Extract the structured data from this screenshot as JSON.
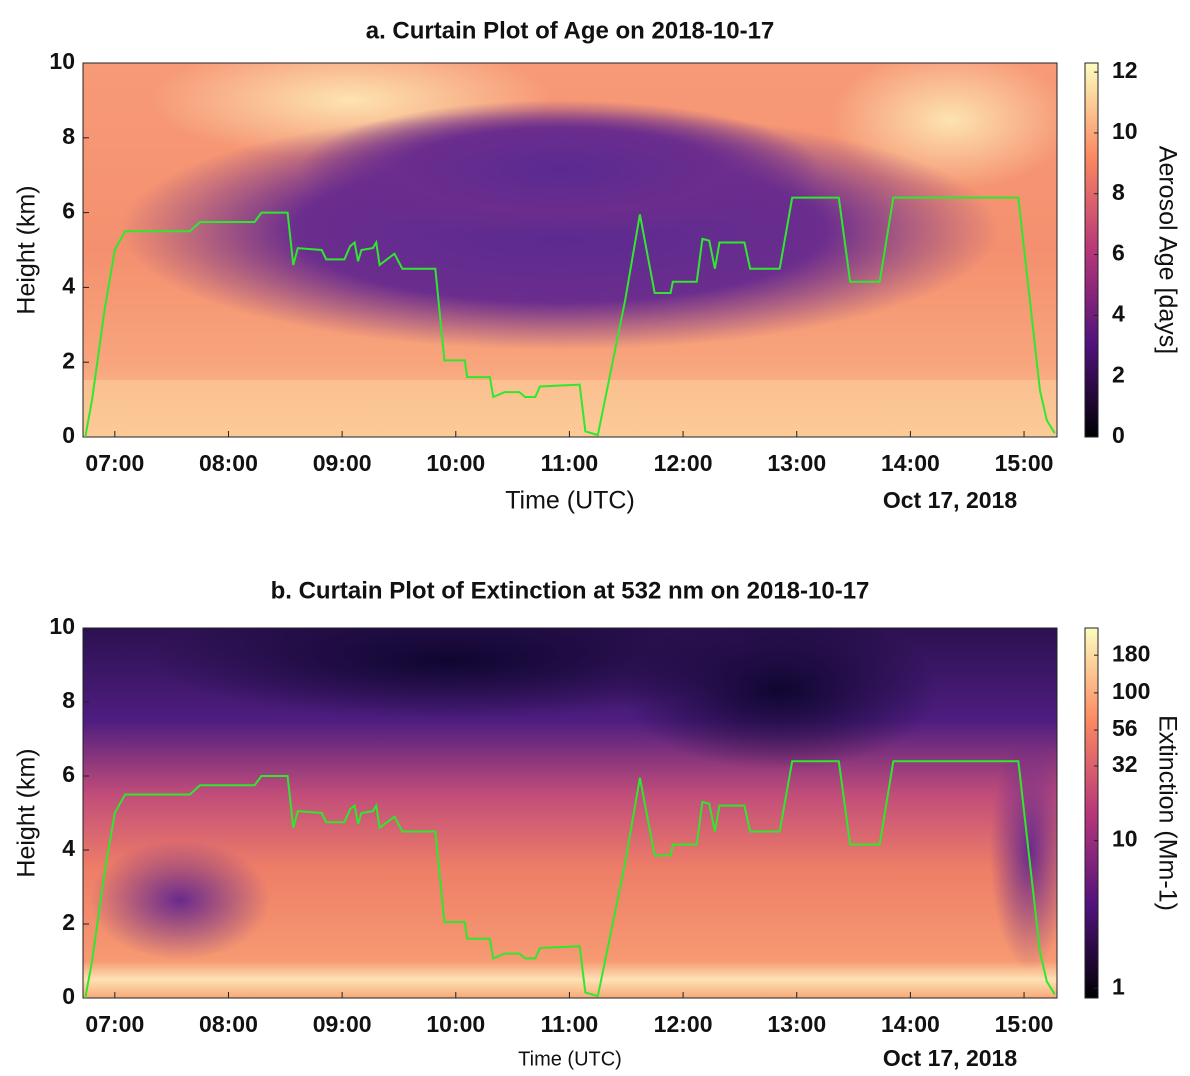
{
  "chart_data": [
    {
      "type": "heatmap",
      "title": "a. Curtain Plot of Age on 2018-10-17",
      "x_label": "Time (UTC)",
      "date_label": "Oct 17, 2018",
      "y_label": "Height (km)",
      "colorbar_label": "Aerosol Age [days]",
      "xlim": [
        6.72,
        15.29
      ],
      "xticks": [
        {
          "value": 7,
          "label": "07:00"
        },
        {
          "value": 8,
          "label": "08:00"
        },
        {
          "value": 9,
          "label": "09:00"
        },
        {
          "value": 10,
          "label": "10:00"
        },
        {
          "value": 11,
          "label": "11:00"
        },
        {
          "value": 12,
          "label": "12:00"
        },
        {
          "value": 13,
          "label": "13:00"
        },
        {
          "value": 14,
          "label": "14:00"
        },
        {
          "value": 15,
          "label": "15:00"
        }
      ],
      "ylim": [
        0,
        10
      ],
      "yticks": [
        0,
        2,
        4,
        6,
        8,
        10
      ],
      "colorbar_scale": "linear",
      "colorbar_lim": [
        0,
        12.3
      ],
      "colorbar_ticks": [
        0,
        2,
        4,
        6,
        8,
        10,
        12
      ],
      "series": [
        {
          "color": "#2ee82e",
          "x": [
            6.74,
            6.8,
            6.91,
            7.0,
            7.09,
            7.66,
            7.75,
            8.23,
            8.29,
            8.52,
            8.57,
            8.61,
            8.82,
            8.86,
            9.02,
            9.07,
            9.11,
            9.14,
            9.17,
            9.27,
            9.3,
            9.33,
            9.46,
            9.53,
            9.82,
            9.9,
            10.08,
            10.1,
            10.3,
            10.33,
            10.43,
            10.56,
            10.61,
            10.7,
            10.74,
            11.09,
            11.14,
            11.25,
            11.49,
            11.62,
            11.75,
            11.89,
            11.91,
            12.12,
            12.17,
            12.23,
            12.28,
            12.32,
            12.54,
            12.59,
            12.85,
            12.96,
            13.37,
            13.47,
            13.73,
            13.85,
            14.95,
            15.14,
            15.2,
            15.27
          ],
          "values": [
            0,
            1.0,
            3.4,
            5.0,
            5.5,
            5.5,
            5.75,
            5.75,
            6.0,
            6.0,
            4.6,
            5.05,
            5.0,
            4.75,
            4.75,
            5.1,
            5.2,
            4.7,
            5.0,
            5.05,
            5.2,
            4.6,
            4.9,
            4.5,
            4.5,
            2.05,
            2.05,
            1.6,
            1.6,
            1.07,
            1.2,
            1.2,
            1.07,
            1.07,
            1.35,
            1.4,
            0.15,
            0.05,
            3.65,
            5.95,
            3.85,
            3.85,
            4.15,
            4.15,
            5.3,
            5.25,
            4.5,
            5.2,
            5.2,
            4.5,
            4.5,
            6.4,
            6.4,
            4.15,
            4.15,
            6.4,
            6.4,
            1.25,
            0.45,
            0.1
          ]
        }
      ]
    },
    {
      "type": "heatmap",
      "title": "b. Curtain Plot of Extinction at 532 nm on 2018-10-17",
      "x_label": "Time (UTC)",
      "date_label": "Oct 17, 2018",
      "y_label": "Height (km)",
      "colorbar_label": "Extinction (Mm-1)",
      "xlim": [
        6.72,
        15.29
      ],
      "xticks": [
        {
          "value": 7,
          "label": "07:00"
        },
        {
          "value": 8,
          "label": "08:00"
        },
        {
          "value": 9,
          "label": "09:00"
        },
        {
          "value": 10,
          "label": "10:00"
        },
        {
          "value": 11,
          "label": "11:00"
        },
        {
          "value": 12,
          "label": "12:00"
        },
        {
          "value": 13,
          "label": "13:00"
        },
        {
          "value": 14,
          "label": "14:00"
        },
        {
          "value": 15,
          "label": "15:00"
        }
      ],
      "ylim": [
        0,
        10
      ],
      "yticks": [
        0,
        2,
        4,
        6,
        8,
        10
      ],
      "colorbar_scale": "log",
      "colorbar_lim": [
        0.86,
        275
      ],
      "colorbar_ticks": [
        1,
        10,
        32,
        56,
        100,
        180
      ],
      "series": [
        {
          "color": "#2ee82e",
          "x": [
            6.74,
            6.8,
            6.91,
            7.0,
            7.09,
            7.66,
            7.75,
            8.23,
            8.29,
            8.52,
            8.57,
            8.61,
            8.82,
            8.86,
            9.02,
            9.07,
            9.11,
            9.14,
            9.17,
            9.27,
            9.3,
            9.33,
            9.46,
            9.53,
            9.82,
            9.9,
            10.08,
            10.1,
            10.3,
            10.33,
            10.43,
            10.56,
            10.61,
            10.7,
            10.74,
            11.09,
            11.14,
            11.25,
            11.49,
            11.62,
            11.75,
            11.89,
            11.91,
            12.12,
            12.17,
            12.23,
            12.28,
            12.32,
            12.54,
            12.59,
            12.85,
            12.96,
            13.37,
            13.47,
            13.73,
            13.85,
            14.95,
            15.14,
            15.2,
            15.27
          ],
          "values": [
            0,
            1.0,
            3.4,
            5.0,
            5.5,
            5.5,
            5.75,
            5.75,
            6.0,
            6.0,
            4.6,
            5.05,
            5.0,
            4.75,
            4.75,
            5.1,
            5.2,
            4.7,
            5.0,
            5.05,
            5.2,
            4.6,
            4.9,
            4.5,
            4.5,
            2.05,
            2.05,
            1.6,
            1.6,
            1.07,
            1.2,
            1.2,
            1.07,
            1.07,
            1.35,
            1.4,
            0.15,
            0.05,
            3.65,
            5.95,
            3.85,
            3.85,
            4.15,
            4.15,
            5.3,
            5.25,
            4.5,
            5.2,
            5.2,
            4.5,
            4.5,
            6.4,
            6.4,
            4.15,
            4.15,
            6.4,
            6.4,
            1.25,
            0.45,
            0.1
          ]
        }
      ]
    }
  ]
}
